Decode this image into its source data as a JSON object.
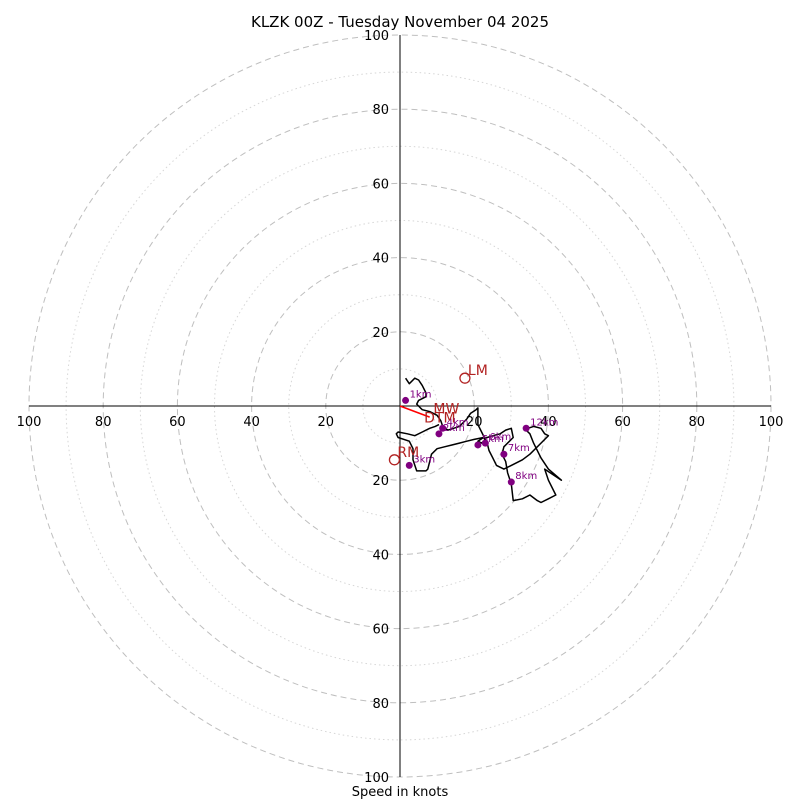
{
  "chart_data": {
    "type": "hodograph",
    "title": "KLZK 00Z - Tuesday November 04 2025",
    "xlabel": "Speed in knots",
    "units": "knots",
    "rmax": 100,
    "major_rings": [
      20,
      40,
      60,
      80,
      100
    ],
    "minor_rings": [
      10,
      30,
      50,
      70,
      90
    ],
    "ticks": {
      "left": [
        "100",
        "80",
        "60",
        "40",
        "20"
      ],
      "right": [
        "20",
        "40",
        "60",
        "80",
        "100"
      ],
      "up": [
        "20",
        "40",
        "60",
        "80",
        "100"
      ],
      "down": [
        "20",
        "40",
        "60",
        "80",
        "100"
      ]
    },
    "tick_values": [
      20,
      40,
      60,
      80,
      100
    ],
    "colors": {
      "trace": "#000000",
      "height_points": "#800080",
      "motion_markers": "#b22222",
      "shear_vector": "#ff0000",
      "rings": "#bfbfbf",
      "axes": "#000000"
    },
    "hodograph_trace": [
      [
        1.5,
        7.5
      ],
      [
        2.5,
        6.0
      ],
      [
        4.0,
        7.5
      ],
      [
        5.0,
        7.0
      ],
      [
        6.0,
        5.5
      ],
      [
        7.0,
        3.5
      ],
      [
        7.0,
        2.5
      ],
      [
        5.0,
        1.5
      ],
      [
        4.5,
        0.5
      ],
      [
        5.5,
        -0.5
      ],
      [
        6.0,
        -1.0
      ],
      [
        8.0,
        -1.5
      ],
      [
        10.0,
        -2.5
      ],
      [
        11.0,
        -4.0
      ],
      [
        11.5,
        -5.5
      ],
      [
        12.0,
        -6.0
      ],
      [
        13.0,
        -6.5
      ],
      [
        16.0,
        -5.5
      ],
      [
        18.0,
        -3.5
      ],
      [
        19.0,
        -2.0
      ],
      [
        20.5,
        -1.0
      ],
      [
        21.0,
        -0.5
      ],
      [
        21.0,
        -5.0
      ],
      [
        22.0,
        -7.0
      ],
      [
        23.0,
        -9.0
      ],
      [
        22.0,
        -10.0
      ],
      [
        21.0,
        -9.5
      ],
      [
        22.5,
        -8.5
      ],
      [
        23.5,
        -8.5
      ],
      [
        25.0,
        -8.0
      ],
      [
        27.0,
        -7.5
      ],
      [
        28.5,
        -6.5
      ],
      [
        30.0,
        -6.0
      ],
      [
        30.5,
        -8.5
      ],
      [
        28.0,
        -11.0
      ],
      [
        27.5,
        -13.0
      ],
      [
        28.5,
        -15.0
      ],
      [
        29.0,
        -18.0
      ],
      [
        30.0,
        -21.0
      ],
      [
        30.5,
        -25.5
      ],
      [
        33.0,
        -25.0
      ],
      [
        35.0,
        -24.0
      ],
      [
        37.0,
        -25.5
      ],
      [
        38.0,
        -26.0
      ],
      [
        40.0,
        -25.0
      ],
      [
        42.0,
        -24.0
      ],
      [
        40.0,
        -20.0
      ],
      [
        39.0,
        -17.0
      ],
      [
        42.0,
        -19.0
      ],
      [
        43.5,
        -20.0
      ],
      [
        40.0,
        -17.0
      ],
      [
        38.0,
        -14.0
      ],
      [
        36.0,
        -10.0
      ],
      [
        35.0,
        -7.5
      ],
      [
        34.0,
        -6.5
      ],
      [
        34.5,
        -6.0
      ],
      [
        36.0,
        -5.5
      ],
      [
        38.0,
        -6.0
      ],
      [
        39.0,
        -7.5
      ],
      [
        40.0,
        -8.0
      ],
      [
        38.0,
        -10.0
      ],
      [
        35.0,
        -13.0
      ],
      [
        33.0,
        -14.5
      ],
      [
        30.0,
        -16.0
      ],
      [
        28.0,
        -17.0
      ],
      [
        26.0,
        -16.0
      ],
      [
        25.0,
        -14.0
      ],
      [
        24.0,
        -12.0
      ],
      [
        23.5,
        -10.0
      ],
      [
        22.5,
        -8.5
      ],
      [
        20.0,
        -9.0
      ],
      [
        18.0,
        -9.5
      ],
      [
        16.0,
        -10.0
      ],
      [
        14.0,
        -10.5
      ],
      [
        12.0,
        -11.0
      ],
      [
        10.0,
        -11.5
      ],
      [
        8.5,
        -13.0
      ],
      [
        8.0,
        -15.0
      ],
      [
        7.5,
        -17.0
      ],
      [
        7.0,
        -17.5
      ],
      [
        4.5,
        -17.5
      ],
      [
        3.5,
        -14.5
      ],
      [
        3.5,
        -11.5
      ],
      [
        2.5,
        -9.5
      ],
      [
        -0.5,
        -8.5
      ],
      [
        -1.0,
        -7.5
      ],
      [
        -0.5,
        -7.0
      ],
      [
        2.0,
        -7.5
      ],
      [
        4.0,
        -8.0
      ],
      [
        6.0,
        -7.0
      ],
      [
        8.0,
        -6.0
      ],
      [
        9.5,
        -5.5
      ],
      [
        10.5,
        -5.0
      ]
    ],
    "height_points": [
      {
        "label": "1km",
        "u": 1.5,
        "v": 1.5
      },
      {
        "label": "2km",
        "u": 10.5,
        "v": -7.5
      },
      {
        "label": "3km",
        "u": 2.5,
        "v": -16.0
      },
      {
        "label": "4km",
        "u": 11.5,
        "v": -6.0
      },
      {
        "label": "5km",
        "u": 21.0,
        "v": -10.5
      },
      {
        "label": "6km",
        "u": 23.0,
        "v": -10.0
      },
      {
        "label": "7km",
        "u": 28.0,
        "v": -13.0
      },
      {
        "label": "8km",
        "u": 30.0,
        "v": -20.5
      },
      {
        "label": "12km",
        "u": 34.0,
        "v": -6.0
      }
    ],
    "storm_markers": [
      {
        "label": "LM",
        "u": 17.5,
        "v": 7.5
      },
      {
        "label": "RM",
        "u": -1.5,
        "v": -14.5
      }
    ],
    "text_markers": [
      {
        "label": "MW",
        "u": 9.0,
        "v": -2.0
      },
      {
        "label": "DTM",
        "u": 6.5,
        "v": -4.5
      }
    ],
    "shear_vector": {
      "from": [
        0,
        0
      ],
      "to": [
        8.0,
        -3.0
      ]
    }
  }
}
